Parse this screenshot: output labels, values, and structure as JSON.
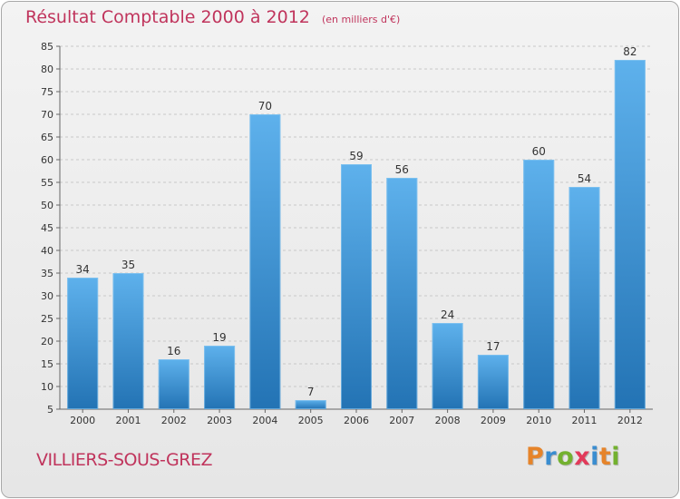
{
  "header": {
    "title": "Résultat Comptable 2000 à 2012",
    "unit": "(en milliers d'€)"
  },
  "footer": {
    "location": "VILLIERS-SOUS-GREZ",
    "brand": {
      "letters": [
        "P",
        "r",
        "o",
        "x",
        "i",
        "t",
        "i"
      ],
      "colors": [
        "#e6842a",
        "#3a8dd0",
        "#73b12f",
        "#e23a5a",
        "#3a8dd0",
        "#e6842a",
        "#73b12f"
      ]
    }
  },
  "colors": {
    "title": "#c0345c",
    "bar_top": "#5eb1ec",
    "bar_bottom": "#2373b4",
    "grid": "#c8c8c8",
    "text": "#333333"
  },
  "chart_data": {
    "type": "bar",
    "title": "Résultat Comptable 2000 à 2012",
    "ylabel": "en milliers d'€",
    "xlabel": "",
    "categories": [
      "2000",
      "2001",
      "2002",
      "2003",
      "2004",
      "2005",
      "2006",
      "2007",
      "2008",
      "2009",
      "2010",
      "2011",
      "2012"
    ],
    "values": [
      34,
      35,
      16,
      19,
      70,
      7,
      59,
      56,
      24,
      17,
      60,
      54,
      82
    ],
    "ylim": [
      5,
      85
    ],
    "yticks": [
      5,
      10,
      15,
      20,
      25,
      30,
      35,
      40,
      45,
      50,
      55,
      60,
      65,
      70,
      75,
      80,
      85
    ],
    "grid": true,
    "data_labels": true
  }
}
